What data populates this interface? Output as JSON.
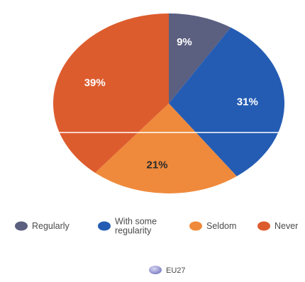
{
  "chart_data": {
    "type": "pie",
    "categories": [
      "Regularly",
      "With some regularity",
      "Seldom",
      "Never"
    ],
    "values": [
      9,
      31,
      21,
      39
    ],
    "labels": [
      "9%",
      "31%",
      "21%",
      "39%"
    ],
    "colors": [
      "#5b5f80",
      "#245cb3",
      "#ef8a3c",
      "#dd5c2e"
    ],
    "label_colors": [
      "#ffffff",
      "#ffffff",
      "#2b2b2b",
      "#ffffff"
    ],
    "legend": {
      "placement": "bottom",
      "items": [
        {
          "label_lines": [
            "Regularly"
          ],
          "color": "#5b5f80"
        },
        {
          "label_lines": [
            "With some",
            "regularity"
          ],
          "color": "#245cb3"
        },
        {
          "label_lines": [
            "Seldom"
          ],
          "color": "#ef8a3c"
        },
        {
          "label_lines": [
            "Never"
          ],
          "color": "#dd5c2e"
        }
      ]
    },
    "series_legend": {
      "label": "EU27",
      "color": "#8f8fcf"
    },
    "title": "",
    "xlabel": "",
    "ylabel": ""
  }
}
